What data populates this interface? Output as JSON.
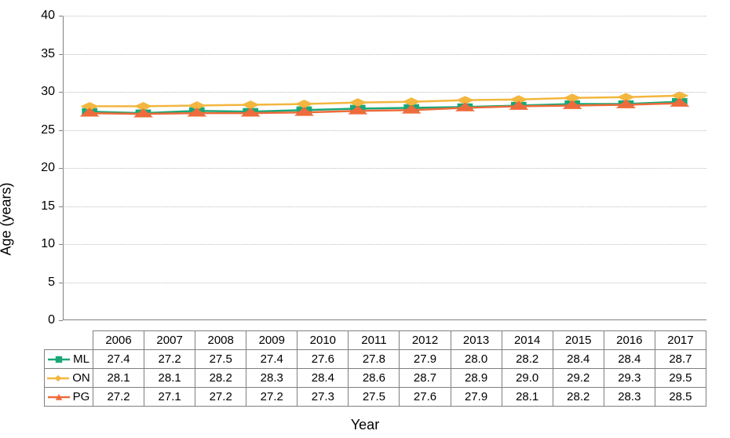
{
  "chart": {
    "type": "line",
    "y_axis_label": "Age (years)",
    "x_axis_label": "Year",
    "ylim": [
      0,
      40
    ],
    "ytick_step": 5,
    "yticks": [
      0,
      5,
      10,
      15,
      20,
      25,
      30,
      35,
      40
    ],
    "tick_fontsize": 16,
    "label_fontsize": 18,
    "background_color": "#ffffff",
    "grid_color": "#bdbdbd",
    "grid_style": "dotted",
    "axis_color": "#808080",
    "line_width": 2.5,
    "marker_size": 8,
    "years": [
      "2006",
      "2007",
      "2008",
      "2009",
      "2010",
      "2011",
      "2012",
      "2013",
      "2014",
      "2015",
      "2016",
      "2017"
    ],
    "series": [
      {
        "id": "ML",
        "label": "ML",
        "color": "#1aa777",
        "marker": "square",
        "values": [
          27.4,
          27.2,
          27.5,
          27.4,
          27.6,
          27.8,
          27.9,
          28.0,
          28.2,
          28.4,
          28.4,
          28.7
        ]
      },
      {
        "id": "ON",
        "label": "ON",
        "color": "#f3b63e",
        "marker": "diamond",
        "values": [
          28.1,
          28.1,
          28.2,
          28.3,
          28.4,
          28.6,
          28.7,
          28.9,
          29.0,
          29.2,
          29.3,
          29.5
        ]
      },
      {
        "id": "PG",
        "label": "PG",
        "color": "#ee6b3b",
        "marker": "triangle",
        "values": [
          27.2,
          27.1,
          27.2,
          27.2,
          27.3,
          27.5,
          27.6,
          27.9,
          28.1,
          28.2,
          28.3,
          28.5
        ]
      }
    ]
  }
}
